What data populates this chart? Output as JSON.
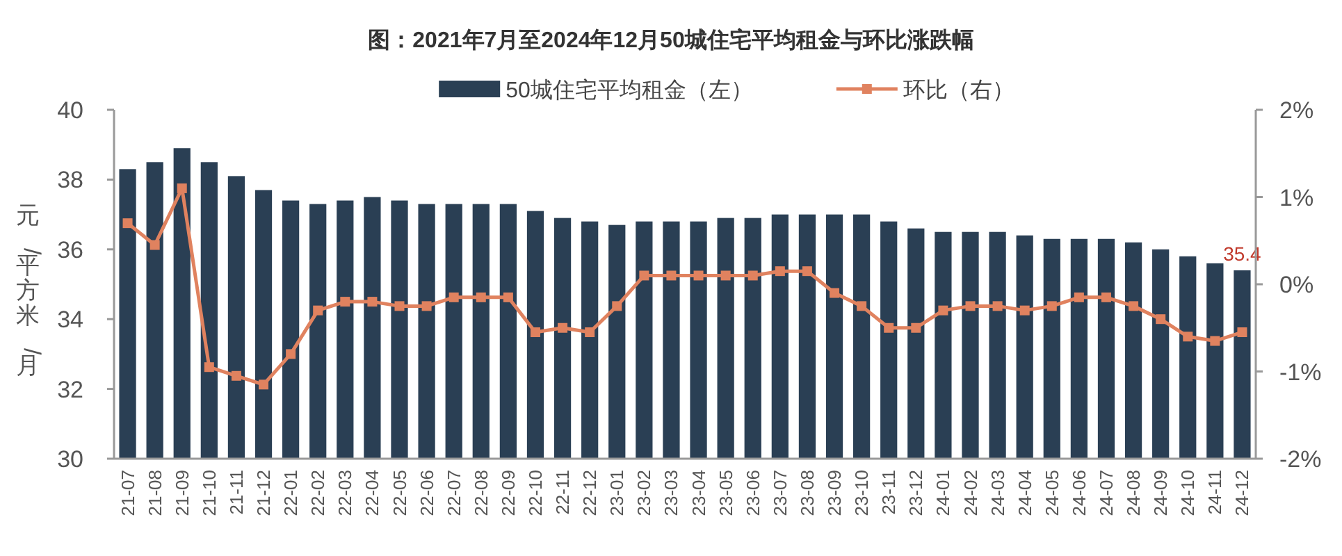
{
  "chart_data": {
    "type": "bar",
    "title": "图：2021年7月至2024年12月50城住宅平均租金与环比涨跌幅",
    "ylabel": "元/平方米/月",
    "categories": [
      "21-07",
      "21-08",
      "21-09",
      "21-10",
      "21-11",
      "21-12",
      "22-01",
      "22-02",
      "22-03",
      "22-04",
      "22-05",
      "22-06",
      "22-07",
      "22-08",
      "22-09",
      "22-10",
      "22-11",
      "22-12",
      "23-01",
      "23-02",
      "23-03",
      "23-04",
      "23-05",
      "23-06",
      "23-07",
      "23-08",
      "23-09",
      "23-10",
      "23-11",
      "23-12",
      "24-01",
      "24-02",
      "24-03",
      "24-04",
      "24-05",
      "24-06",
      "24-07",
      "24-08",
      "24-09",
      "24-10",
      "24-11",
      "24-12"
    ],
    "series": [
      {
        "name": "50城住宅平均租金（左）",
        "color": "#2a3f54",
        "values": [
          38.3,
          38.5,
          38.9,
          38.5,
          38.1,
          37.7,
          37.4,
          37.3,
          37.4,
          37.5,
          37.4,
          37.3,
          37.3,
          37.3,
          37.3,
          37.1,
          36.9,
          36.8,
          36.7,
          36.8,
          36.8,
          36.8,
          36.9,
          36.9,
          37.0,
          37.0,
          37.0,
          37.0,
          36.8,
          36.6,
          36.5,
          36.5,
          36.5,
          36.4,
          36.3,
          36.3,
          36.3,
          36.2,
          36.0,
          35.8,
          35.6,
          35.4
        ],
        "value_labels": [
          null,
          null,
          null,
          null,
          null,
          null,
          null,
          null,
          null,
          null,
          null,
          null,
          null,
          null,
          null,
          null,
          null,
          null,
          null,
          null,
          null,
          null,
          null,
          null,
          null,
          null,
          null,
          null,
          null,
          null,
          null,
          null,
          null,
          null,
          null,
          null,
          null,
          null,
          null,
          null,
          null,
          "35.4"
        ]
      },
      {
        "name": "环比（右）",
        "type": "line",
        "axis": "y2",
        "color": "#e0825f",
        "values": [
          0.7,
          0.45,
          1.1,
          -0.95,
          -1.05,
          -1.15,
          -0.8,
          -0.3,
          -0.2,
          -0.2,
          -0.25,
          -0.25,
          -0.15,
          -0.15,
          -0.15,
          -0.55,
          -0.5,
          -0.55,
          -0.25,
          0.1,
          0.1,
          0.1,
          0.1,
          0.1,
          0.15,
          0.15,
          -0.1,
          -0.25,
          -0.5,
          -0.5,
          -0.3,
          -0.25,
          -0.25,
          -0.3,
          -0.25,
          -0.15,
          -0.15,
          -0.25,
          -0.4,
          -0.6,
          -0.65,
          -0.55
        ]
      }
    ],
    "ylim": [
      30,
      40
    ],
    "yticks": [
      30,
      32,
      34,
      36,
      38,
      40
    ],
    "y2lim": [
      -2,
      2
    ],
    "y2ticks": [
      {
        "value": -2,
        "label": "-2%"
      },
      {
        "value": -1,
        "label": "-1%"
      },
      {
        "value": 0,
        "label": "0%"
      },
      {
        "value": 1,
        "label": "1%"
      },
      {
        "value": 2,
        "label": "2%"
      }
    ],
    "marker": "square",
    "legend": "top",
    "grid": false
  }
}
